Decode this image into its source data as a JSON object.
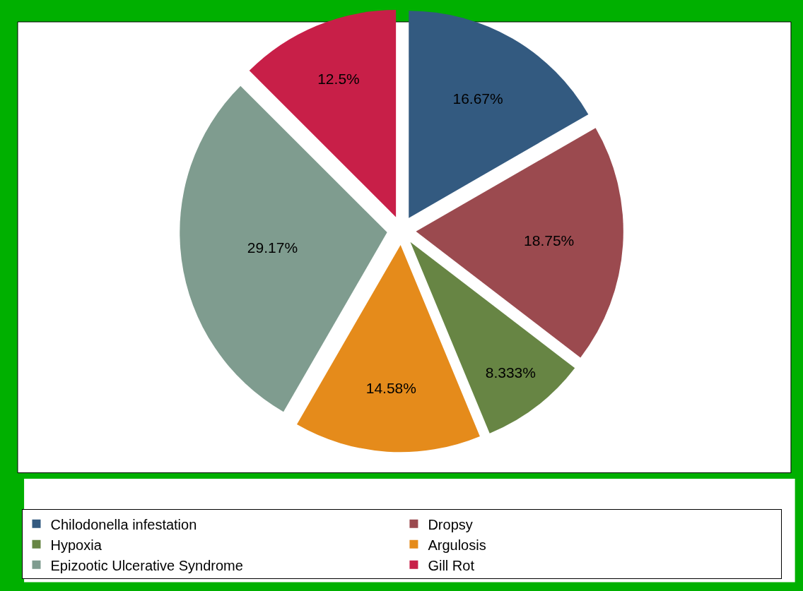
{
  "chart_data": {
    "type": "pie",
    "categories": [
      "Chilodonella infestation",
      "Dropsy",
      "Hypoxia",
      "Argulosis",
      "Epizootic Ulcerative Syndrome",
      "Gill Rot"
    ],
    "values": [
      16.67,
      18.75,
      8.333,
      14.58,
      29.17,
      12.5
    ],
    "value_labels": [
      "16.67%",
      "18.75%",
      "8.333%",
      "14.58%",
      "29.17%",
      "12.5%"
    ],
    "colors": [
      "#335a80",
      "#9b4a4f",
      "#678544",
      "#e58b1b",
      "#7f9c8f",
      "#c81f48"
    ],
    "legend": "bottom"
  }
}
